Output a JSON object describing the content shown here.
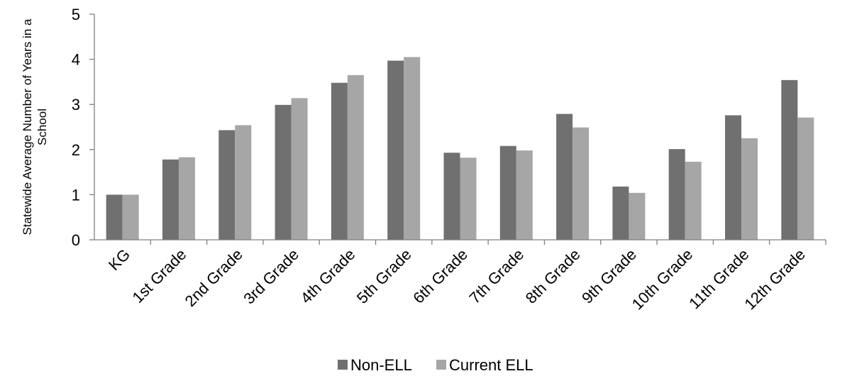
{
  "chart_data": {
    "type": "bar",
    "title": "",
    "xlabel": "",
    "ylabel": "Statewide Average Number of Years in a School",
    "ylim": [
      0,
      5
    ],
    "yticks": [
      0,
      1,
      2,
      3,
      4,
      5
    ],
    "grid": false,
    "legend_position": "bottom",
    "categories": [
      "KG",
      "1st Grade",
      "2nd Grade",
      "3rd Grade",
      "4th Grade",
      "5th Grade",
      "6th Grade",
      "7th Grade",
      "8th Grade",
      "9th Grade",
      "10th Grade",
      "11th Grade",
      "12th Grade"
    ],
    "series": [
      {
        "name": "Non-ELL",
        "color": "#707070",
        "values": [
          1.0,
          1.78,
          2.43,
          2.99,
          3.48,
          3.97,
          1.93,
          2.08,
          2.79,
          1.18,
          2.01,
          2.76,
          3.54
        ]
      },
      {
        "name": "Current ELL",
        "color": "#a6a6a6",
        "values": [
          1.0,
          1.83,
          2.54,
          3.14,
          3.65,
          4.05,
          1.82,
          1.98,
          2.49,
          1.04,
          1.73,
          2.25,
          2.71
        ]
      }
    ]
  }
}
